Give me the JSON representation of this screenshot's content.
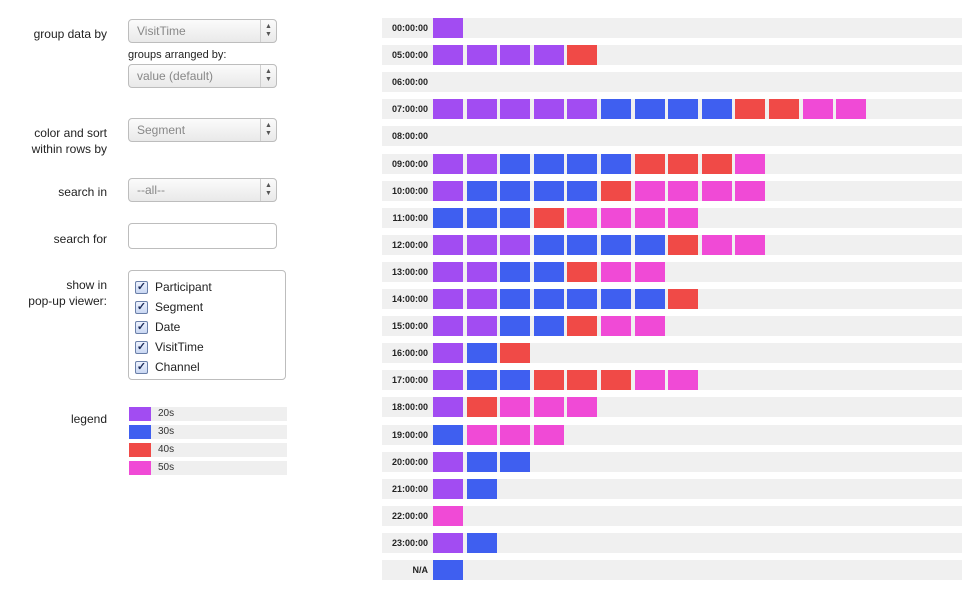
{
  "controls": {
    "group_label": "group data by",
    "group_value": "VisitTime",
    "arranged_label": "groups arranged by:",
    "arranged_value": "value (default)",
    "color_label_line1": "color and sort",
    "color_label_line2": "within rows by",
    "color_value": "Segment",
    "search_in_label": "search in",
    "search_in_value": "--all--",
    "search_for_label": "search for",
    "search_for_value": "",
    "popup_label_line1": "show in",
    "popup_label_line2": "pop-up viewer:",
    "popup_fields": [
      {
        "label": "Participant",
        "checked": true
      },
      {
        "label": "Segment",
        "checked": true
      },
      {
        "label": "Date",
        "checked": true
      },
      {
        "label": "VisitTime",
        "checked": true
      },
      {
        "label": "Channel",
        "checked": true
      }
    ],
    "legend_label": "legend"
  },
  "legend": [
    {
      "label": "20s",
      "color": "#a24cf2"
    },
    {
      "label": "30s",
      "color": "#3f5ff0"
    },
    {
      "label": "40s",
      "color": "#f04a47"
    },
    {
      "label": "50s",
      "color": "#f04ad6"
    }
  ],
  "chart_data": {
    "type": "bar",
    "categories": [
      "00:00:00",
      "05:00:00",
      "06:00:00",
      "07:00:00",
      "08:00:00",
      "09:00:00",
      "10:00:00",
      "11:00:00",
      "12:00:00",
      "13:00:00",
      "14:00:00",
      "15:00:00",
      "16:00:00",
      "17:00:00",
      "18:00:00",
      "19:00:00",
      "20:00:00",
      "21:00:00",
      "22:00:00",
      "23:00:00",
      "N/A"
    ],
    "series": [
      {
        "name": "20s",
        "values": [
          1,
          4,
          0,
          5,
          0,
          2,
          1,
          0,
          3,
          2,
          2,
          2,
          1,
          1,
          1,
          0,
          1,
          1,
          0,
          1,
          0
        ]
      },
      {
        "name": "30s",
        "values": [
          0,
          0,
          0,
          4,
          0,
          4,
          4,
          3,
          4,
          2,
          5,
          2,
          1,
          2,
          0,
          1,
          2,
          1,
          0,
          1,
          1
        ]
      },
      {
        "name": "40s",
        "values": [
          0,
          1,
          0,
          2,
          0,
          3,
          1,
          1,
          1,
          1,
          1,
          1,
          1,
          3,
          1,
          0,
          0,
          0,
          0,
          0,
          0
        ]
      },
      {
        "name": "50s",
        "values": [
          0,
          0,
          0,
          2,
          0,
          1,
          4,
          4,
          2,
          2,
          0,
          2,
          0,
          2,
          3,
          3,
          0,
          0,
          1,
          0,
          0
        ]
      }
    ]
  }
}
